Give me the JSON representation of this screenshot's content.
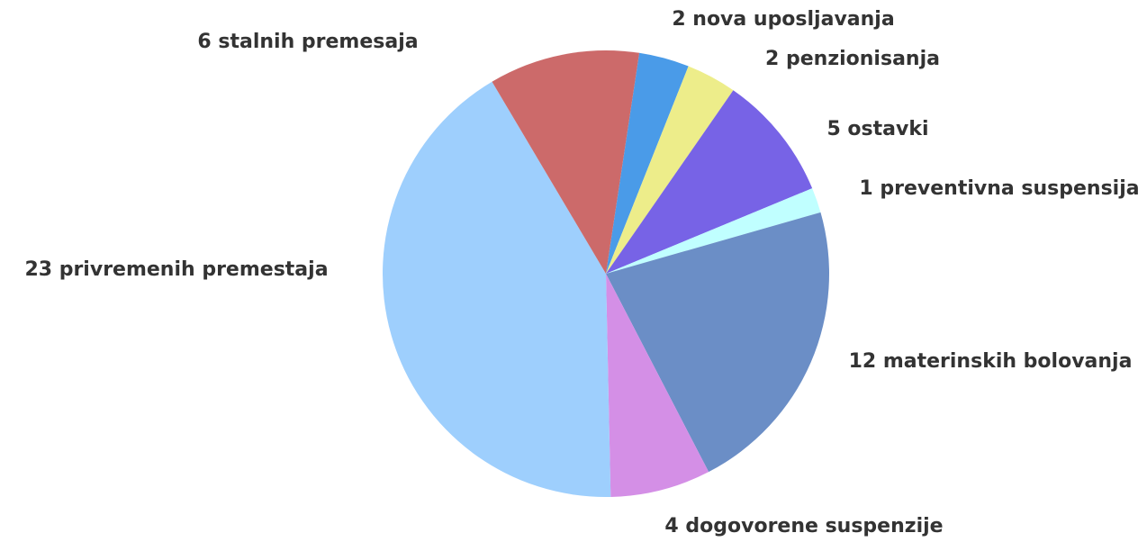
{
  "chart_data": {
    "type": "pie",
    "categories": [
      "2 nova uposljavanja",
      "2 penzionisanja",
      "5 ostavki",
      "1 preventivna suspensija",
      "12 materinskih bolovanja",
      "4 dogovorene suspenzije",
      "23 privremenih premestaja",
      "6 stalnih premesaja"
    ],
    "values": [
      2,
      2,
      5,
      1,
      12,
      4,
      23,
      6
    ],
    "colors": [
      "#4a9be8",
      "#eded8a",
      "#7763e6",
      "#c0ffff",
      "#6b8ec6",
      "#d48fe6",
      "#9ecffd",
      "#cc6a6a"
    ],
    "start_angle": 8.6
  }
}
